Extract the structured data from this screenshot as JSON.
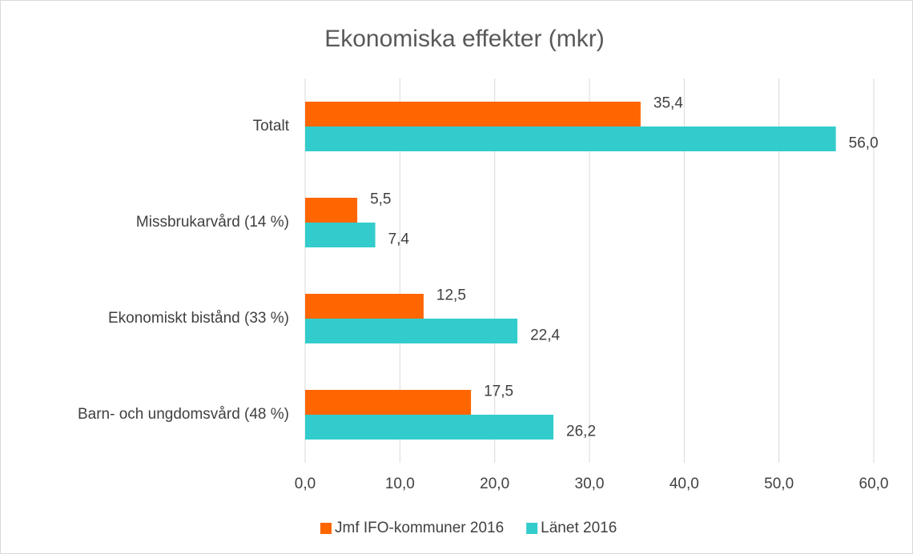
{
  "chart_data": {
    "type": "hbar",
    "title": "Ekonomiska effekter (mkr)",
    "categories": [
      "Totalt",
      "Missbrukarvård (14 %)",
      "Ekonomiskt bistånd (33 %)",
      "Barn- och ungdomsvård (48 %)"
    ],
    "series": [
      {
        "name": "Jmf IFO-kommuner 2016",
        "color": "#ff6600",
        "values": [
          35.4,
          5.5,
          12.5,
          17.5
        ],
        "value_labels": [
          "35,4",
          "5,5",
          "12,5",
          "17,5"
        ]
      },
      {
        "name": "Länet 2016",
        "color": "#33cccc",
        "values": [
          56.0,
          7.4,
          22.4,
          26.2
        ],
        "value_labels": [
          "56,0",
          "7,4",
          "22,4",
          "26,2"
        ]
      }
    ],
    "xlim": [
      0,
      60
    ],
    "xticks": [
      {
        "value": 0,
        "label": "0,0"
      },
      {
        "value": 10,
        "label": "10,0"
      },
      {
        "value": 20,
        "label": "20,0"
      },
      {
        "value": 30,
        "label": "30,0"
      },
      {
        "value": 40,
        "label": "40,0"
      },
      {
        "value": 50,
        "label": "50,0"
      },
      {
        "value": 60,
        "label": "60,0"
      }
    ],
    "grid": true,
    "legend": "bottom"
  }
}
